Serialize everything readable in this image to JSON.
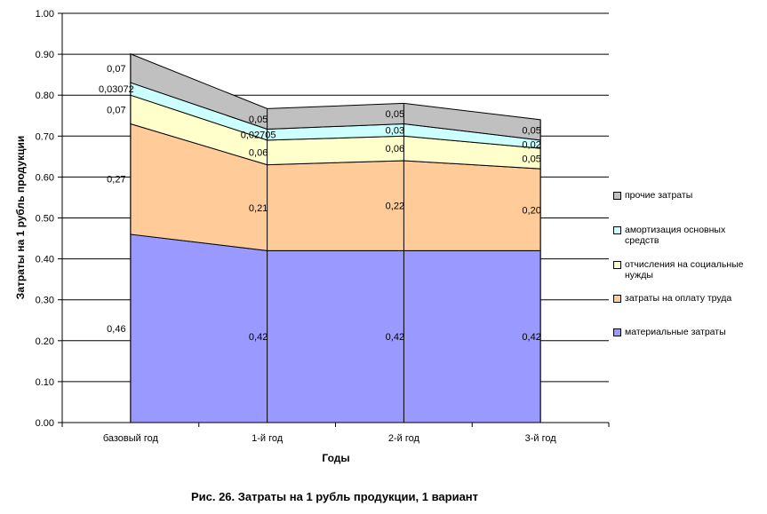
{
  "caption": "Рис. 26. Затраты на 1 рубль продукции, 1 вариант",
  "chart_data": {
    "type": "area",
    "stacked": true,
    "categories": [
      "базовый год",
      "1-й год",
      "2-й год",
      "3-й год"
    ],
    "xlabel": "Годы",
    "ylabel": "Затраты на 1 рубль продукции",
    "ylim": [
      0,
      1.0
    ],
    "yticks": [
      "0.00",
      "0.10",
      "0.20",
      "0.30",
      "0.40",
      "0.50",
      "0.60",
      "0.70",
      "0.80",
      "0.90",
      "1.00"
    ],
    "grid": true,
    "legend_position": "right",
    "series": [
      {
        "name": "материальные затраты",
        "color": "#9999ff",
        "values": [
          0.46,
          0.42,
          0.42,
          0.42
        ],
        "labels": [
          "0,46",
          "0,42",
          "0,42",
          "0,42"
        ]
      },
      {
        "name": "затраты на оплату труда",
        "color": "#ffcc99",
        "values": [
          0.27,
          0.21,
          0.22,
          0.2
        ],
        "labels": [
          "0,27",
          "0,21",
          "0,22",
          "0,20"
        ]
      },
      {
        "name": "отчисления на социальные нужды",
        "color": "#ffffcc",
        "values": [
          0.07,
          0.06,
          0.06,
          0.05
        ],
        "labels": [
          "0,07",
          "0,06",
          "0,06",
          "0,05"
        ]
      },
      {
        "name": "амортизация основных средств",
        "color": "#ccffff",
        "values": [
          0.03072,
          0.02705,
          0.03,
          0.02
        ],
        "labels": [
          "0,03072",
          "0,02705",
          "0,03",
          "0,02"
        ]
      },
      {
        "name": "прочие затраты",
        "color": "#c0c0c0",
        "values": [
          0.07,
          0.05,
          0.05,
          0.05
        ],
        "labels": [
          "0,07",
          "0,05",
          "0,05",
          "0,05"
        ]
      }
    ]
  }
}
